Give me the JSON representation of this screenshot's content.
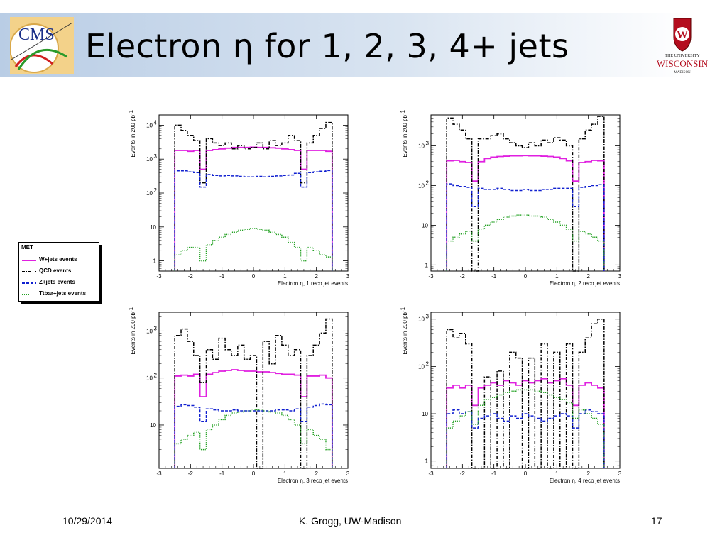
{
  "slide": {
    "title": "Electron η for 1, 2, 3, 4+ jets",
    "cms_logo_text": "CMS",
    "uw_logo": {
      "line1": "THE UNIVERSITY",
      "line2": "WISCONSIN",
      "line3": "MADISON",
      "shield_letter": "W"
    },
    "footer": {
      "date": "10/29/2014",
      "author": "K. Grogg, UW-Madison",
      "page": "17"
    }
  },
  "legend": {
    "header": "MET",
    "entries": [
      {
        "label": "W+jets events",
        "color": "#e020e0",
        "style": "solid"
      },
      {
        "label": "QCD events",
        "color": "#000000",
        "style": "dashdot"
      },
      {
        "label": "Z+jets events",
        "color": "#1020d0",
        "style": "dash"
      },
      {
        "label": "Ttbar+jets events",
        "color": "#20a020",
        "style": "dot"
      }
    ]
  },
  "chart_data": [
    {
      "type": "line",
      "xlabel": "Electron η,  1 reco jet events",
      "ylabel": "Events in 200 pb",
      "ylabel_sup": "-1",
      "xlim": [
        -3,
        3
      ],
      "ylim": [
        0.5,
        20000
      ],
      "yscale": "log",
      "xticks": [
        "-3",
        "-2",
        "-1",
        "0",
        "1",
        "2",
        "3"
      ],
      "yticks": [
        {
          "v": 1,
          "t": "1"
        },
        {
          "v": 10,
          "t": "10"
        },
        {
          "v": 100,
          "t": "10",
          "e": "2"
        },
        {
          "v": 1000,
          "t": "10",
          "e": "3"
        },
        {
          "v": 10000,
          "t": "10",
          "e": "4"
        }
      ],
      "x": [
        -2.4,
        -2.2,
        -2.0,
        -1.8,
        -1.6,
        -1.4,
        -1.2,
        -1.0,
        -0.8,
        -0.6,
        -0.4,
        -0.2,
        0.0,
        0.2,
        0.4,
        0.6,
        0.8,
        1.0,
        1.2,
        1.4,
        1.6,
        1.8,
        2.0,
        2.2,
        2.4
      ],
      "series": [
        {
          "name": "W+jets events",
          "values": [
            1800,
            1800,
            1700,
            1800,
            500,
            1800,
            1900,
            2000,
            2100,
            2200,
            2200,
            2200,
            2250,
            2200,
            2200,
            2150,
            2100,
            2000,
            1900,
            1800,
            500,
            1800,
            1800,
            1800,
            1700
          ]
        },
        {
          "name": "QCD events",
          "values": [
            10000,
            7000,
            5000,
            3500,
            200,
            4000,
            3000,
            2500,
            3000,
            2000,
            2500,
            2000,
            2200,
            3000,
            2000,
            3500,
            2500,
            3000,
            5000,
            3500,
            200,
            3000,
            5000,
            8000,
            12000
          ]
        },
        {
          "name": "Z+jets events",
          "values": [
            450,
            450,
            420,
            400,
            150,
            350,
            330,
            320,
            330,
            320,
            310,
            300,
            300,
            310,
            300,
            310,
            320,
            330,
            340,
            380,
            150,
            400,
            420,
            440,
            460
          ]
        },
        {
          "name": "Ttbar+jets events",
          "values": [
            1.5,
            2,
            2.5,
            2.5,
            1,
            3,
            4,
            5,
            6,
            7,
            8,
            8.5,
            9,
            8.5,
            8,
            7,
            6,
            5,
            3.5,
            2.5,
            1,
            2.5,
            2,
            1.5,
            1.3
          ]
        }
      ]
    },
    {
      "type": "line",
      "xlabel": "Electron η,  2 reco jet events",
      "ylabel": "Events in 200 pb",
      "ylabel_sup": "-1",
      "xlim": [
        -3,
        3
      ],
      "ylim": [
        0.7,
        6000
      ],
      "yscale": "log",
      "xticks": [
        "-3",
        "-2",
        "-1",
        "0",
        "1",
        "2",
        "3"
      ],
      "yticks": [
        {
          "v": 1,
          "t": "1"
        },
        {
          "v": 10,
          "t": "10"
        },
        {
          "v": 100,
          "t": "10",
          "e": "2"
        },
        {
          "v": 1000,
          "t": "10",
          "e": "3"
        }
      ],
      "x": [
        -2.4,
        -2.2,
        -2.0,
        -1.8,
        -1.6,
        -1.4,
        -1.2,
        -1.0,
        -0.8,
        -0.6,
        -0.4,
        -0.2,
        0.0,
        0.2,
        0.4,
        0.6,
        0.8,
        1.0,
        1.2,
        1.4,
        1.6,
        1.8,
        2.0,
        2.2,
        2.4
      ],
      "series": [
        {
          "name": "W+jets events",
          "values": [
            420,
            430,
            400,
            380,
            130,
            400,
            480,
            520,
            540,
            550,
            560,
            560,
            570,
            560,
            560,
            550,
            540,
            520,
            480,
            420,
            130,
            380,
            400,
            430,
            420
          ]
        },
        {
          "name": "QCD events",
          "values": [
            5000,
            3500,
            2500,
            1500,
            0.5,
            1500,
            1500,
            1800,
            2000,
            1500,
            1200,
            1000,
            900,
            1200,
            1000,
            1400,
            1200,
            1600,
            1400,
            1000,
            0.5,
            1500,
            2500,
            3500,
            5500
          ]
        },
        {
          "name": "Z+jets events",
          "values": [
            110,
            100,
            95,
            90,
            30,
            85,
            80,
            80,
            85,
            80,
            75,
            75,
            80,
            75,
            75,
            80,
            80,
            85,
            85,
            85,
            30,
            90,
            95,
            100,
            105
          ]
        },
        {
          "name": "Ttbar+jets events",
          "values": [
            4,
            5,
            6,
            7,
            4,
            8,
            10,
            12,
            14,
            16,
            17,
            18,
            18,
            17,
            17,
            16,
            14,
            12,
            10,
            8,
            4,
            7,
            6,
            5,
            4
          ]
        }
      ]
    },
    {
      "type": "line",
      "xlabel": "Electron η,  3 reco jet events",
      "ylabel": "Events in 200 pb",
      "ylabel_sup": "-1",
      "xlim": [
        -3,
        3
      ],
      "ylim": [
        1.2,
        2500
      ],
      "yscale": "log",
      "xticks": [
        "-3",
        "-2",
        "-1",
        "0",
        "1",
        "2",
        "3"
      ],
      "yticks": [
        {
          "v": 10,
          "t": "10"
        },
        {
          "v": 100,
          "t": "10",
          "e": "2"
        },
        {
          "v": 1000,
          "t": "10",
          "e": "3"
        }
      ],
      "x": [
        -2.4,
        -2.2,
        -2.0,
        -1.8,
        -1.6,
        -1.4,
        -1.2,
        -1.0,
        -0.8,
        -0.6,
        -0.4,
        -0.2,
        0.0,
        0.2,
        0.4,
        0.6,
        0.8,
        1.0,
        1.2,
        1.4,
        1.6,
        1.8,
        2.0,
        2.2,
        2.4
      ],
      "series": [
        {
          "name": "W+jets events",
          "values": [
            110,
            115,
            110,
            120,
            40,
            120,
            130,
            140,
            145,
            150,
            145,
            140,
            140,
            135,
            135,
            130,
            125,
            120,
            120,
            115,
            40,
            110,
            110,
            115,
            100
          ]
        },
        {
          "name": "QCD events",
          "values": [
            800,
            1100,
            600,
            300,
            80,
            400,
            250,
            700,
            400,
            300,
            500,
            250,
            300,
            0.5,
            600,
            200,
            800,
            500,
            300,
            400,
            0.5,
            300,
            500,
            900,
            1800
          ]
        },
        {
          "name": "Z+jets events",
          "values": [
            25,
            27,
            26,
            24,
            12,
            22,
            21,
            20,
            20,
            21,
            20,
            20,
            20,
            20,
            20,
            20,
            21,
            21,
            20,
            22,
            12,
            24,
            26,
            28,
            27
          ]
        },
        {
          "name": "Ttbar+jets events",
          "values": [
            4,
            5,
            6,
            7,
            3,
            8,
            10,
            13,
            16,
            18,
            19,
            20,
            21,
            21,
            20,
            19,
            18,
            16,
            13,
            10,
            4,
            8,
            6,
            5,
            3
          ]
        }
      ]
    },
    {
      "type": "line",
      "xlabel": "Electron η,  4 reco jet events",
      "ylabel": "Events in 200 pb",
      "ylabel_sup": "-1",
      "xlim": [
        -3,
        3
      ],
      "ylim": [
        0.7,
        1400
      ],
      "yscale": "log",
      "xticks": [
        "-3",
        "-2",
        "-1",
        "0",
        "1",
        "2",
        "3"
      ],
      "yticks": [
        {
          "v": 1,
          "t": "1"
        },
        {
          "v": 10,
          "t": "10"
        },
        {
          "v": 100,
          "t": "10",
          "e": "2"
        },
        {
          "v": 1000,
          "t": "10",
          "e": "3"
        }
      ],
      "x": [
        -2.4,
        -2.2,
        -2.0,
        -1.8,
        -1.6,
        -1.4,
        -1.2,
        -1.0,
        -0.8,
        -0.6,
        -0.4,
        -0.2,
        0.0,
        0.2,
        0.4,
        0.6,
        0.8,
        1.0,
        1.2,
        1.4,
        1.6,
        1.8,
        2.0,
        2.2,
        2.4
      ],
      "series": [
        {
          "name": "W+jets events",
          "values": [
            35,
            40,
            35,
            40,
            15,
            35,
            40,
            45,
            40,
            50,
            45,
            40,
            50,
            45,
            50,
            55,
            45,
            50,
            55,
            40,
            15,
            40,
            45,
            40,
            35
          ]
        },
        {
          "name": "QCD events",
          "values": [
            600,
            400,
            500,
            300,
            0.5,
            0.5,
            60,
            0.5,
            80,
            0.5,
            200,
            150,
            0.5,
            150,
            0.5,
            300,
            0.5,
            200,
            0.5,
            300,
            0.5,
            200,
            400,
            800,
            1000
          ]
        },
        {
          "name": "Z+jets events",
          "values": [
            10,
            12,
            10,
            11,
            5,
            8,
            9,
            10,
            8,
            7,
            9,
            8,
            10,
            9,
            8,
            7,
            8,
            9,
            10,
            9,
            5,
            10,
            12,
            11,
            10
          ]
        },
        {
          "name": "Ttbar+jets events",
          "values": [
            5,
            7,
            9,
            11,
            6,
            15,
            20,
            22,
            25,
            28,
            30,
            32,
            32,
            32,
            30,
            28,
            25,
            22,
            20,
            17,
            8,
            12,
            10,
            8,
            6
          ]
        }
      ]
    }
  ]
}
